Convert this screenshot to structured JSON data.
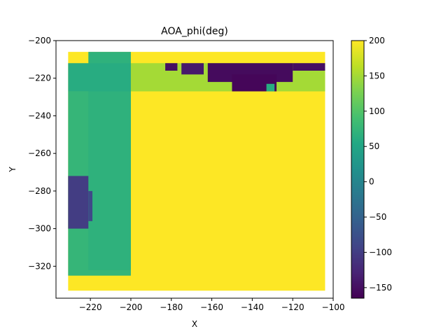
{
  "chart_data": {
    "type": "heatmap",
    "title": "AOA_phi(deg)",
    "xlabel": "X",
    "ylabel": "Y",
    "xlim": [
      -237,
      -100
    ],
    "ylim": [
      -337,
      -200
    ],
    "xticks": [
      -220,
      -200,
      -180,
      -160,
      -140,
      -120,
      -100
    ],
    "yticks": [
      -200,
      -220,
      -240,
      -260,
      -280,
      -300,
      -320
    ],
    "xtick_labels": [
      "−220",
      "−200",
      "−180",
      "−160",
      "−140",
      "−120",
      "−100"
    ],
    "ytick_labels": [
      "−200",
      "−220",
      "−240",
      "−260",
      "−280",
      "−300",
      "−320"
    ],
    "colorbar": {
      "colormap": "viridis",
      "vmin": -165,
      "vmax": 200,
      "ticks": [
        200,
        150,
        100,
        50,
        0,
        -50,
        -100,
        -150
      ],
      "tick_labels": [
        "200",
        "150",
        "100",
        "50",
        "0",
        "−50",
        "−100",
        "−150"
      ]
    },
    "regions": [
      {
        "x0": -231,
        "x1": -104,
        "y0": -333,
        "y1": -206,
        "value": 200
      },
      {
        "x0": -231,
        "x1": -200,
        "y0": -325,
        "y1": -227,
        "value": 75
      },
      {
        "x0": -221,
        "x1": -200,
        "y0": -322,
        "y1": -206,
        "value": 68
      },
      {
        "x0": -231,
        "x1": -200,
        "y0": -227,
        "y1": -212,
        "value": 60
      },
      {
        "x0": -200,
        "x1": -104,
        "y0": -227,
        "y1": -212,
        "value": 150
      },
      {
        "x0": -231,
        "x1": -221,
        "y0": -300,
        "y1": -272,
        "value": -100
      },
      {
        "x0": -221,
        "x1": -219,
        "y0": -296,
        "y1": -280,
        "value": -85
      },
      {
        "x0": -162,
        "x1": -120,
        "y0": -222,
        "y1": -212,
        "value": -155
      },
      {
        "x0": -150,
        "x1": -128,
        "y0": -227,
        "y1": -218,
        "value": -160
      },
      {
        "x0": -183,
        "x1": -177,
        "y0": -216,
        "y1": -212,
        "value": -150
      },
      {
        "x0": -175,
        "x1": -164,
        "y0": -218,
        "y1": -212,
        "value": -140
      },
      {
        "x0": -133,
        "x1": -129,
        "y0": -227,
        "y1": -223,
        "value": 60
      },
      {
        "x0": -120,
        "x1": -104,
        "y0": -216,
        "y1": -212,
        "value": -150
      }
    ]
  }
}
